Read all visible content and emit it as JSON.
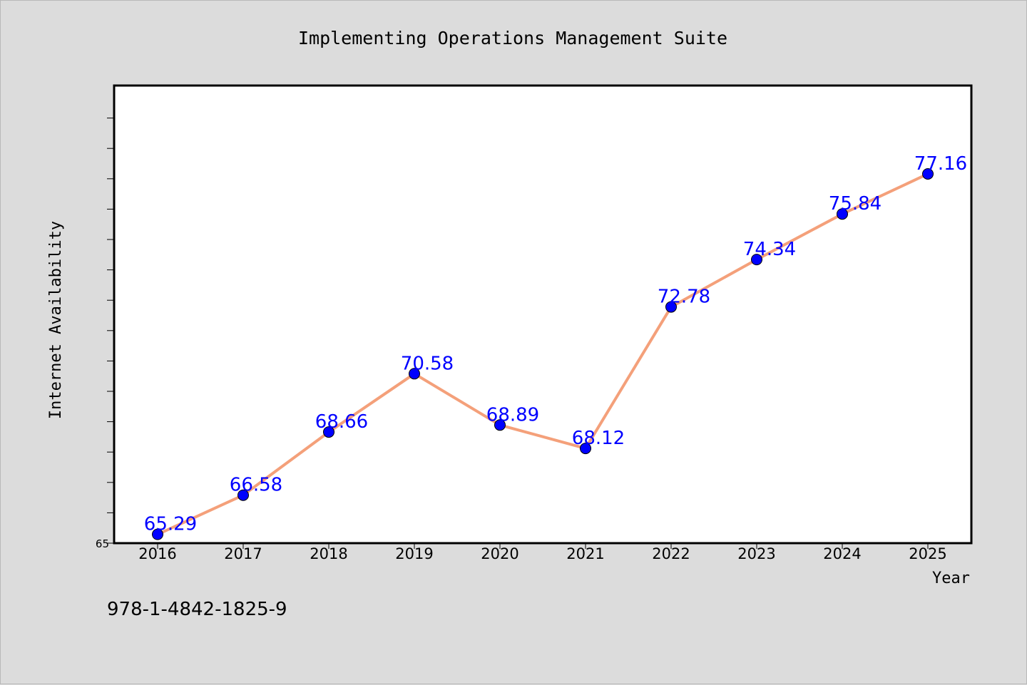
{
  "chart_data": {
    "type": "line",
    "title": "Implementing Operations Management Suite",
    "xlabel": "Year",
    "ylabel": "Internet Availability",
    "categories": [
      "2016",
      "2017",
      "2018",
      "2019",
      "2020",
      "2021",
      "2022",
      "2023",
      "2024",
      "2025"
    ],
    "series": [
      {
        "values": [
          65.29,
          66.58,
          68.66,
          70.58,
          68.89,
          68.12,
          72.78,
          74.34,
          75.84,
          77.16
        ]
      }
    ],
    "data_labels": [
      "65.29",
      "66.58",
      "68.66",
      "70.58",
      "68.89",
      "68.12",
      "72.78",
      "74.34",
      "75.84",
      "77.16"
    ],
    "ylim": [
      65,
      80
    ],
    "y_tick_labels": [
      "65"
    ],
    "grid": false,
    "colors": {
      "line": "#f4a07a",
      "marker": "#0000ff",
      "data_label": "#0000ff",
      "background": "#dcdcdc",
      "plot_area": "#ffffff"
    }
  },
  "footer": {
    "isbn": "978-1-4842-1825-9"
  }
}
